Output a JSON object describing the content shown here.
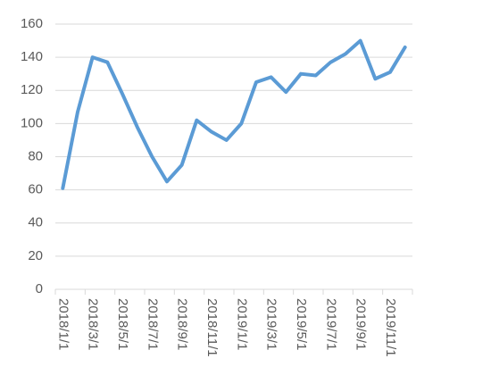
{
  "chart_data": {
    "type": "line",
    "categories": [
      "2018/1/1",
      null,
      "2018/3/1",
      null,
      "2018/5/1",
      null,
      "2018/7/1",
      null,
      "2018/9/1",
      null,
      "2018/11/1",
      null,
      "2019/1/1",
      null,
      "2019/3/1",
      null,
      "2019/5/1",
      null,
      "2019/7/1",
      null,
      "2019/9/1",
      null,
      "2019/11/1",
      null
    ],
    "values": [
      61,
      107,
      140,
      137,
      118,
      98,
      80,
      65,
      75,
      102,
      95,
      90,
      100,
      125,
      128,
      119,
      130,
      129,
      137,
      142,
      150,
      127,
      131,
      146
    ],
    "color": "#5b9bd5",
    "ylim": [
      0,
      160
    ],
    "yticks": [
      0,
      20,
      40,
      60,
      80,
      100,
      120,
      140,
      160
    ],
    "grid": true
  }
}
